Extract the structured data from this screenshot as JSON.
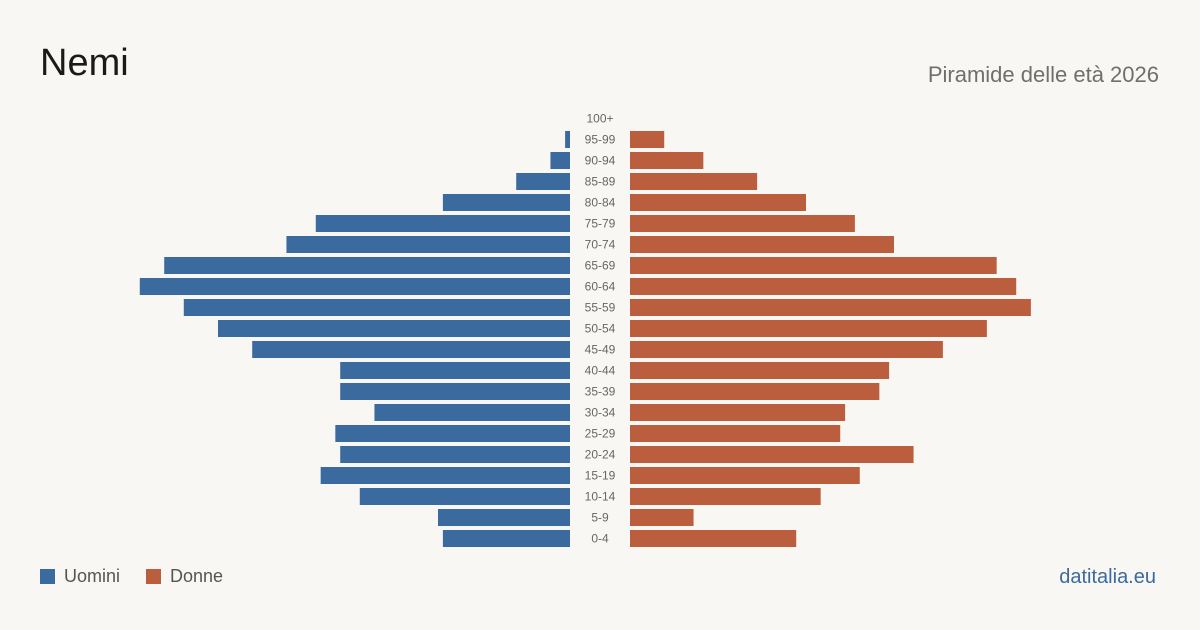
{
  "header": {
    "title": "Nemi",
    "subtitle": "Piramide delle età 2026"
  },
  "legend": {
    "men_label": "Uomini",
    "women_label": "Donne"
  },
  "footer": {
    "brand": "datitalia.eu"
  },
  "colors": {
    "men": "#3b6a9e",
    "women": "#bb5e3e",
    "background": "#f9f7f3"
  },
  "chart_data": {
    "type": "bar",
    "orientation": "horizontal-population-pyramid",
    "categories": [
      "100+",
      "95-99",
      "90-94",
      "85-89",
      "80-84",
      "75-79",
      "70-74",
      "65-69",
      "60-64",
      "55-59",
      "50-54",
      "45-49",
      "40-44",
      "35-39",
      "30-34",
      "25-29",
      "20-24",
      "15-19",
      "10-14",
      "5-9",
      "0-4"
    ],
    "series": [
      {
        "name": "Uomini",
        "values": [
          0,
          1,
          4,
          11,
          26,
          52,
          58,
          83,
          88,
          79,
          72,
          65,
          47,
          47,
          40,
          48,
          47,
          51,
          43,
          27,
          26
        ]
      },
      {
        "name": "Donne",
        "values": [
          0,
          7,
          15,
          26,
          36,
          46,
          54,
          75,
          79,
          82,
          73,
          64,
          53,
          51,
          44,
          43,
          58,
          47,
          39,
          13,
          34
        ]
      }
    ],
    "legend": "bottom-left",
    "grid": false
  }
}
